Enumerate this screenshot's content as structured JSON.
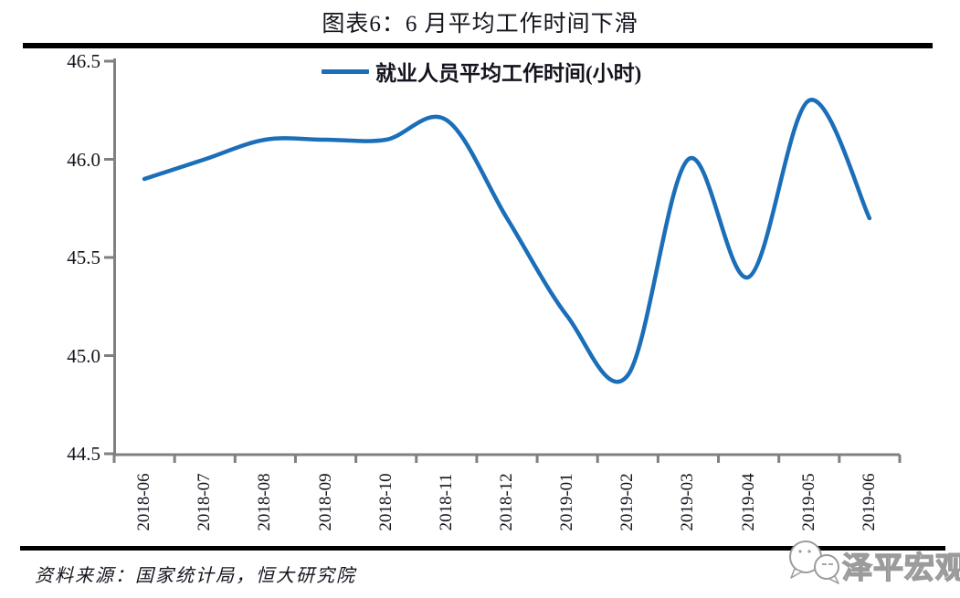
{
  "page": {
    "source": "资料来源：国家统计局，恒大研究院",
    "watermark": "泽平宏观",
    "rule_color": "#000000"
  },
  "chart_data": {
    "type": "line",
    "title": "图表6：6 月平均工作时间下滑",
    "legend": "就业人员平均工作时间(小时)",
    "legend_position": "top-center",
    "smooth": true,
    "grid": false,
    "categories": [
      "2018-06",
      "2018-07",
      "2018-08",
      "2018-09",
      "2018-10",
      "2018-11",
      "2018-12",
      "2019-01",
      "2019-02",
      "2019-03",
      "2019-04",
      "2019-05",
      "2019-06"
    ],
    "series": [
      {
        "name": "就业人员平均工作时间(小时)",
        "values": [
          45.9,
          46.0,
          46.1,
          46.1,
          46.1,
          46.2,
          45.7,
          45.2,
          44.9,
          46.0,
          45.4,
          46.3,
          45.7
        ]
      }
    ],
    "xlabel": "",
    "ylabel": "",
    "ylim": [
      44.5,
      46.5
    ],
    "yticks": [
      "46.5",
      "46.0",
      "45.5",
      "45.0",
      "44.5"
    ],
    "line_color": "#1B6EB8",
    "axis_color": "#808080"
  }
}
